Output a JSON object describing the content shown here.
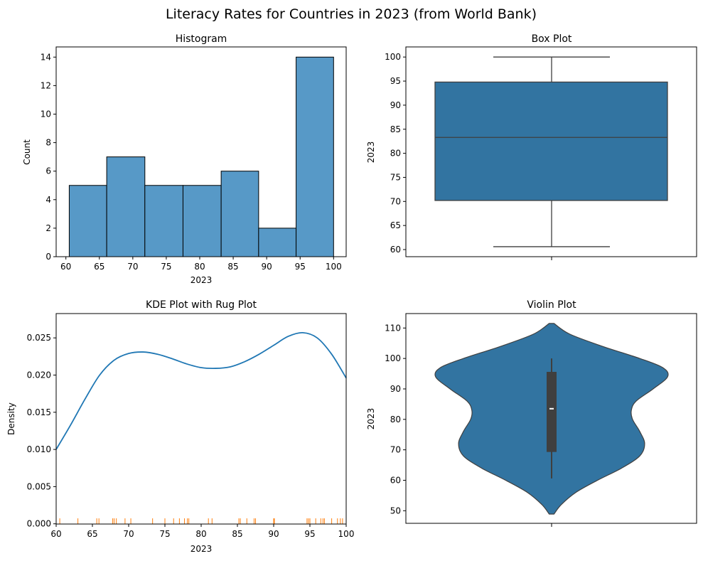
{
  "figure": {
    "title": "Literacy Rates for Countries in 2023 (from World Bank)"
  },
  "colors": {
    "hist_fill": "#5799c7",
    "box_fill": "#3274a1",
    "kde_line": "#1f77b4",
    "rug": "#ff7f0e",
    "edge": "#3f3f3f"
  },
  "chart_data": [
    {
      "type": "bar",
      "subtype": "histogram",
      "title": "Histogram",
      "xlabel": "2023",
      "ylabel": "Count",
      "bins": [
        {
          "start": 60.5,
          "end": 66.1,
          "count": 5
        },
        {
          "start": 66.1,
          "end": 71.8,
          "count": 7
        },
        {
          "start": 71.8,
          "end": 77.5,
          "count": 5
        },
        {
          "start": 77.5,
          "end": 83.2,
          "count": 5
        },
        {
          "start": 83.2,
          "end": 88.8,
          "count": 6
        },
        {
          "start": 88.8,
          "end": 94.4,
          "count": 2
        },
        {
          "start": 94.4,
          "end": 100.0,
          "count": 14
        }
      ],
      "xticks": [
        "60",
        "65",
        "70",
        "75",
        "80",
        "85",
        "90",
        "95",
        "100"
      ],
      "yticks": [
        "0",
        "2",
        "4",
        "6",
        "8",
        "10",
        "12",
        "14"
      ],
      "xlim": [
        58.5,
        102
      ],
      "ylim": [
        0,
        14.7
      ],
      "grid": false
    },
    {
      "type": "box",
      "title": "Box Plot",
      "xlabel": "",
      "ylabel": "2023",
      "stats": {
        "min": 60.6,
        "q1": 70.2,
        "median": 83.3,
        "q3": 94.8,
        "max": 100.0
      },
      "yticks": [
        "60",
        "65",
        "70",
        "75",
        "80",
        "85",
        "90",
        "95",
        "100"
      ],
      "ylim": [
        58.5,
        102
      ],
      "grid": false
    },
    {
      "type": "line",
      "subtype": "kde_with_rug",
      "title": "KDE Plot with Rug Plot",
      "xlabel": "2023",
      "ylabel": "Density",
      "x": [
        60,
        62,
        64,
        66,
        68,
        70,
        72,
        74,
        76,
        78,
        80,
        82,
        84,
        86,
        88,
        90,
        92,
        94,
        96,
        98,
        100
      ],
      "y": [
        0.01,
        0.0133,
        0.0168,
        0.02,
        0.022,
        0.0229,
        0.0231,
        0.0228,
        0.0222,
        0.0215,
        0.021,
        0.0209,
        0.0211,
        0.0218,
        0.0228,
        0.024,
        0.0252,
        0.0257,
        0.025,
        0.0228,
        0.0196
      ],
      "rug_values": [
        60.5,
        63.0,
        65.6,
        65.9,
        67.8,
        68.0,
        68.3,
        69.5,
        70.3,
        73.3,
        75.0,
        76.2,
        77.0,
        77.7,
        78.1,
        78.3,
        81.0,
        81.5,
        85.2,
        85.4,
        86.3,
        87.3,
        87.5,
        90.0,
        90.1,
        94.6,
        94.8,
        95.0,
        95.8,
        96.5,
        96.8,
        97.0,
        98.0,
        98.8,
        99.2,
        99.5,
        100.0
      ],
      "xticks": [
        "60",
        "65",
        "70",
        "75",
        "80",
        "85",
        "90",
        "95",
        "100"
      ],
      "yticks": [
        "0.000",
        "0.005",
        "0.010",
        "0.015",
        "0.020",
        "0.025"
      ],
      "xlim": [
        60,
        100
      ],
      "ylim": [
        0,
        0.0283
      ],
      "grid": false
    },
    {
      "type": "violin",
      "title": "Violin Plot",
      "xlabel": "",
      "ylabel": "2023",
      "inner_box": {
        "min": 60.6,
        "q1": 69.3,
        "median": 83.5,
        "q3": 95.6,
        "max": 100.0
      },
      "density_extent": [
        48.9,
        111.5
      ],
      "half_widths": [
        {
          "y": 48.9,
          "w": 0.02
        },
        {
          "y": 52,
          "w": 0.08
        },
        {
          "y": 56,
          "w": 0.2
        },
        {
          "y": 60,
          "w": 0.38
        },
        {
          "y": 64,
          "w": 0.58
        },
        {
          "y": 68,
          "w": 0.73
        },
        {
          "y": 72,
          "w": 0.77
        },
        {
          "y": 76,
          "w": 0.73
        },
        {
          "y": 80,
          "w": 0.67
        },
        {
          "y": 83,
          "w": 0.66
        },
        {
          "y": 86,
          "w": 0.7
        },
        {
          "y": 90,
          "w": 0.84
        },
        {
          "y": 94,
          "w": 0.96
        },
        {
          "y": 97,
          "w": 0.92
        },
        {
          "y": 100,
          "w": 0.73
        },
        {
          "y": 104,
          "w": 0.42
        },
        {
          "y": 108,
          "w": 0.15
        },
        {
          "y": 111.5,
          "w": 0.02
        }
      ],
      "yticks": [
        "50",
        "60",
        "70",
        "80",
        "90",
        "100",
        "110"
      ],
      "ylim": [
        45.5,
        114.5
      ],
      "grid": false
    }
  ]
}
